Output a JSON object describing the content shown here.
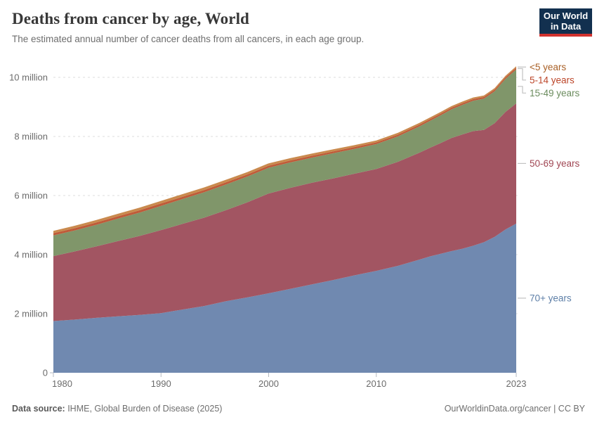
{
  "header": {
    "title": "Deaths from cancer by age, World",
    "subtitle": "The estimated annual number of cancer deaths from all cancers, in each age group.",
    "logo": {
      "line1": "Our World",
      "line2": "in Data",
      "bg_color": "#12304f",
      "bar_color": "#d1322e"
    }
  },
  "footer": {
    "source_label": "Data source:",
    "source_text": " IHME, Global Burden of Disease (2025)",
    "link_text": "OurWorldinData.org/cancer | CC BY"
  },
  "chart_data": {
    "type": "area",
    "stacked": true,
    "title": "Deaths from cancer by age, World",
    "xlabel": "",
    "ylabel": "",
    "unit": "million deaths",
    "grid": "horizontal-dashed",
    "legend_position": "right-edge-labels",
    "xlim": [
      1980,
      2023
    ],
    "ylim": [
      0,
      10.5
    ],
    "x_ticks": [
      1980,
      1990,
      2000,
      2010,
      2023
    ],
    "y_ticks": [
      {
        "value": 0,
        "label": "0"
      },
      {
        "value": 2,
        "label": "2 million"
      },
      {
        "value": 4,
        "label": "4 million"
      },
      {
        "value": 6,
        "label": "6 million"
      },
      {
        "value": 8,
        "label": "8 million"
      },
      {
        "value": 10,
        "label": "10 million"
      }
    ],
    "x": [
      1980,
      1982,
      1984,
      1986,
      1988,
      1990,
      1992,
      1994,
      1996,
      1998,
      2000,
      2002,
      2004,
      2006,
      2008,
      2010,
      2012,
      2014,
      2015,
      2016,
      2017,
      2018,
      2019,
      2020,
      2021,
      2022,
      2023
    ],
    "series": [
      {
        "id": "age-70-plus",
        "name": "70+ years",
        "color": "#7089b0",
        "label_color": "#5f80a8",
        "values": [
          1.75,
          1.8,
          1.86,
          1.91,
          1.96,
          2.02,
          2.14,
          2.26,
          2.42,
          2.55,
          2.69,
          2.84,
          2.99,
          3.14,
          3.3,
          3.45,
          3.62,
          3.83,
          3.94,
          4.03,
          4.12,
          4.2,
          4.3,
          4.42,
          4.6,
          4.85,
          5.05
        ]
      },
      {
        "id": "age-50-69",
        "name": "50-69 years",
        "color": "#a25562",
        "label_color": "#a04653",
        "values": [
          2.2,
          2.31,
          2.42,
          2.55,
          2.67,
          2.81,
          2.9,
          2.99,
          3.08,
          3.22,
          3.38,
          3.42,
          3.44,
          3.44,
          3.44,
          3.45,
          3.52,
          3.62,
          3.68,
          3.75,
          3.83,
          3.87,
          3.88,
          3.8,
          3.85,
          3.98,
          4.07
        ]
      },
      {
        "id": "age-15-49",
        "name": "15-49 years",
        "color": "#80966a",
        "label_color": "#6b8c5e",
        "values": [
          0.7,
          0.71,
          0.73,
          0.76,
          0.79,
          0.82,
          0.84,
          0.86,
          0.87,
          0.87,
          0.87,
          0.86,
          0.85,
          0.85,
          0.84,
          0.84,
          0.86,
          0.89,
          0.91,
          0.94,
          0.97,
          1.0,
          1.03,
          1.06,
          1.08,
          1.12,
          1.15
        ]
      },
      {
        "id": "age-5-14",
        "name": "5-14 years",
        "color": "#bf5b39",
        "label_color": "#bc4629",
        "values": [
          0.075,
          0.076,
          0.077,
          0.078,
          0.079,
          0.08,
          0.078,
          0.076,
          0.074,
          0.072,
          0.07,
          0.068,
          0.066,
          0.064,
          0.062,
          0.06,
          0.059,
          0.058,
          0.057,
          0.057,
          0.056,
          0.056,
          0.055,
          0.055,
          0.055,
          0.055,
          0.055
        ]
      },
      {
        "id": "age-under-5",
        "name": "<5 years",
        "color": "#c98a4e",
        "label_color": "#a85f25",
        "values": [
          0.08,
          0.082,
          0.084,
          0.086,
          0.088,
          0.09,
          0.089,
          0.087,
          0.085,
          0.082,
          0.08,
          0.077,
          0.074,
          0.071,
          0.068,
          0.065,
          0.062,
          0.059,
          0.058,
          0.056,
          0.055,
          0.054,
          0.053,
          0.052,
          0.051,
          0.05,
          0.05
        ]
      }
    ],
    "style": {
      "grid_color": "#dcdcdc",
      "tick_color": "#b5bac0",
      "axis_text_color": "#6b6b6b",
      "connector_color": "#c2c2c2"
    }
  }
}
